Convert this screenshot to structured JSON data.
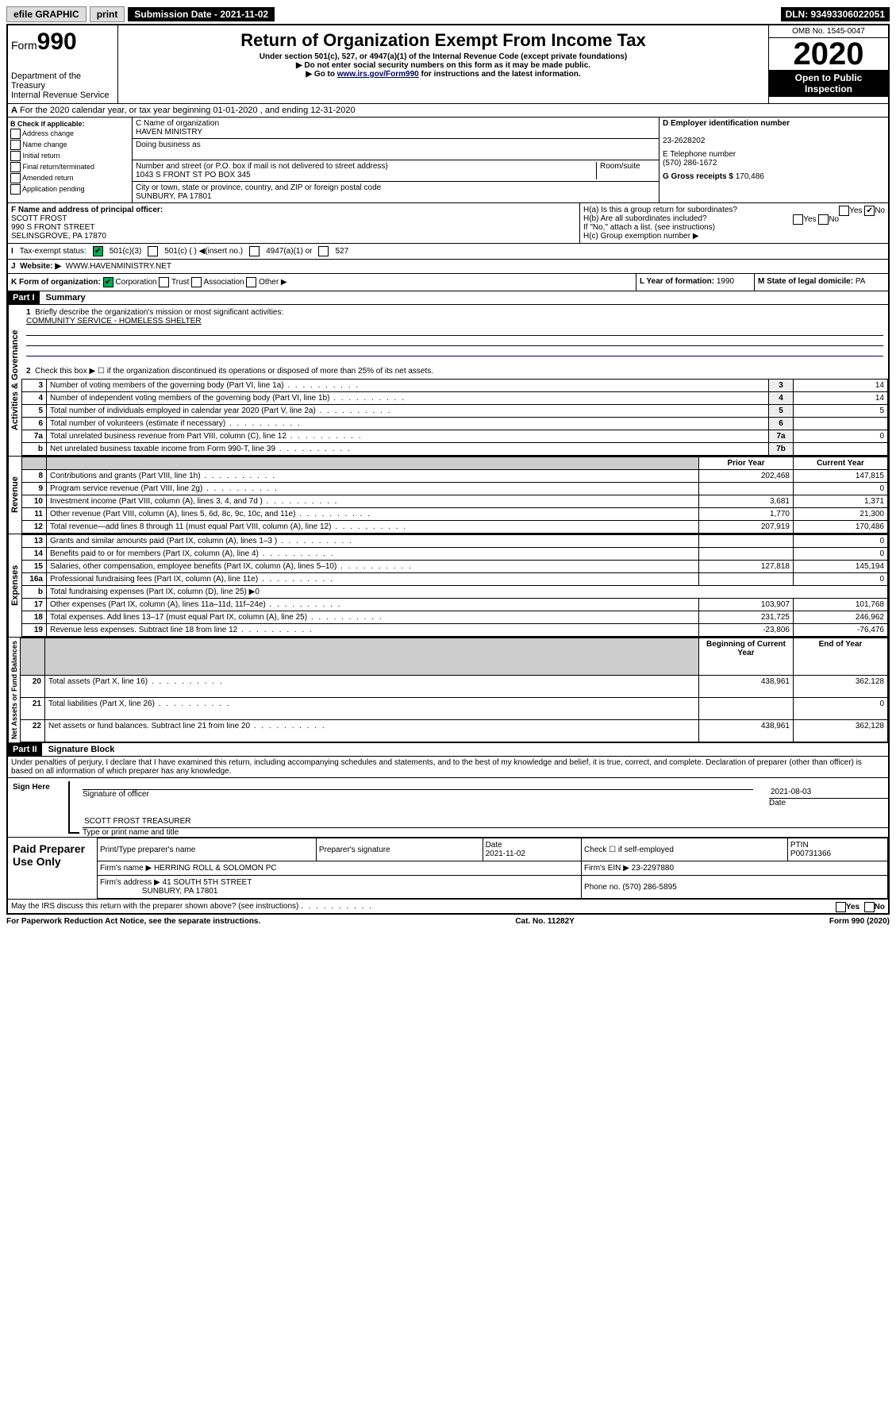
{
  "topbar": {
    "efile": "efile GRAPHIC",
    "print": "print",
    "subdate_lbl": "Submission Date - 2021-11-02",
    "dln": "DLN: 93493306022051"
  },
  "header": {
    "form": "990",
    "formword": "Form",
    "title": "Return of Organization Exempt From Income Tax",
    "subtitle": "Under section 501(c), 527, or 4947(a)(1) of the Internal Revenue Code (except private foundations)",
    "note1": "▶ Do not enter social security numbers on this form as it may be made public.",
    "note2_pre": "▶ Go to ",
    "note2_link": "www.irs.gov/Form990",
    "note2_post": " for instructions and the latest information.",
    "dept": "Department of the Treasury\nInternal Revenue Service",
    "omb": "OMB No. 1545-0047",
    "year": "2020",
    "open": "Open to Public Inspection"
  },
  "A": {
    "text": "For the 2020 calendar year, or tax year beginning 01-01-2020   , and ending 12-31-2020"
  },
  "B": {
    "hdr": "B Check if applicable:",
    "opts": [
      "Address change",
      "Name change",
      "Initial return",
      "Final return/terminated",
      "Amended return",
      "Application pending"
    ]
  },
  "C": {
    "name_lbl": "C Name of organization",
    "name": "HAVEN MINISTRY",
    "dba_lbl": "Doing business as",
    "dba": "",
    "addr_lbl": "Number and street (or P.O. box if mail is not delivered to street address)",
    "room_lbl": "Room/suite",
    "addr": "1043 S FRONT ST PO BOX 345",
    "city_lbl": "City or town, state or province, country, and ZIP or foreign postal code",
    "city": "SUNBURY, PA  17801"
  },
  "D": {
    "lbl": "D Employer identification number",
    "val": "23-2628202"
  },
  "E": {
    "lbl": "E Telephone number",
    "val": "(570) 286-1672"
  },
  "G": {
    "lbl": "G Gross receipts $",
    "val": "170,486"
  },
  "F": {
    "lbl": "F  Name and address of principal officer:",
    "name": "SCOTT FROST",
    "l1": "990 S FRONT STREET",
    "l2": "SELINSGROVE, PA  17870"
  },
  "H": {
    "a": "H(a)  Is this a group return for subordinates?",
    "b": "H(b)  Are all subordinates included?",
    "bnote": "If \"No,\" attach a list. (see instructions)",
    "c": "H(c)  Group exemption number ▶",
    "yes": "Yes",
    "no": "No"
  },
  "I": {
    "lbl": "Tax-exempt status:",
    "o1": "501(c)(3)",
    "o2": "501(c) (  ) ◀(insert no.)",
    "o3": "4947(a)(1) or",
    "o4": "527"
  },
  "J": {
    "lbl": "Website: ▶",
    "val": "WWW.HAVENMINISTRY.NET"
  },
  "K": {
    "lbl": "K Form of organization:",
    "o1": "Corporation",
    "o2": "Trust",
    "o3": "Association",
    "o4": "Other ▶"
  },
  "L": {
    "lbl": "L Year of formation:",
    "val": "1990"
  },
  "M": {
    "lbl": "M State of legal domicile:",
    "val": "PA"
  },
  "part1": {
    "hdr": "Part I",
    "title": "Summary",
    "q1": "Briefly describe the organization's mission or most significant activities:",
    "mission": "COMMUNITY SERVICE - HOMELESS SHELTER",
    "q2": "Check this box ▶ ☐  if the organization discontinued its operations or disposed of more than 25% of its net assets.",
    "rows_gov": [
      {
        "n": "3",
        "t": "Number of voting members of the governing body (Part VI, line 1a)",
        "rn": "3",
        "v": "14"
      },
      {
        "n": "4",
        "t": "Number of independent voting members of the governing body (Part VI, line 1b)",
        "rn": "4",
        "v": "14"
      },
      {
        "n": "5",
        "t": "Total number of individuals employed in calendar year 2020 (Part V, line 2a)",
        "rn": "5",
        "v": "5"
      },
      {
        "n": "6",
        "t": "Total number of volunteers (estimate if necessary)",
        "rn": "6",
        "v": ""
      },
      {
        "n": "7a",
        "t": "Total unrelated business revenue from Part VIII, column (C), line 12",
        "rn": "7a",
        "v": "0"
      },
      {
        "n": "b",
        "t": "Net unrelated business taxable income from Form 990-T, line 39",
        "rn": "7b",
        "v": ""
      }
    ],
    "colhdr1": "Prior Year",
    "colhdr2": "Current Year",
    "rows_rev": [
      {
        "n": "8",
        "t": "Contributions and grants (Part VIII, line 1h)",
        "p": "202,468",
        "c": "147,815"
      },
      {
        "n": "9",
        "t": "Program service revenue (Part VIII, line 2g)",
        "p": "",
        "c": "0"
      },
      {
        "n": "10",
        "t": "Investment income (Part VIII, column (A), lines 3, 4, and 7d )",
        "p": "3,681",
        "c": "1,371"
      },
      {
        "n": "11",
        "t": "Other revenue (Part VIII, column (A), lines 5, 6d, 8c, 9c, 10c, and 11e)",
        "p": "1,770",
        "c": "21,300"
      },
      {
        "n": "12",
        "t": "Total revenue—add lines 8 through 11 (must equal Part VIII, column (A), line 12)",
        "p": "207,919",
        "c": "170,486"
      }
    ],
    "rows_exp": [
      {
        "n": "13",
        "t": "Grants and similar amounts paid (Part IX, column (A), lines 1–3 )",
        "p": "",
        "c": "0"
      },
      {
        "n": "14",
        "t": "Benefits paid to or for members (Part IX, column (A), line 4)",
        "p": "",
        "c": "0"
      },
      {
        "n": "15",
        "t": "Salaries, other compensation, employee benefits (Part IX, column (A), lines 5–10)",
        "p": "127,818",
        "c": "145,194"
      },
      {
        "n": "16a",
        "t": "Professional fundraising fees (Part IX, column (A), line 11e)",
        "p": "",
        "c": "0"
      },
      {
        "n": "b",
        "t": "Total fundraising expenses (Part IX, column (D), line 25) ▶0",
        "p": null,
        "c": null
      },
      {
        "n": "17",
        "t": "Other expenses (Part IX, column (A), lines 11a–11d, 11f–24e)",
        "p": "103,907",
        "c": "101,768"
      },
      {
        "n": "18",
        "t": "Total expenses. Add lines 13–17 (must equal Part IX, column (A), line 25)",
        "p": "231,725",
        "c": "246,962"
      },
      {
        "n": "19",
        "t": "Revenue less expenses. Subtract line 18 from line 12",
        "p": "-23,806",
        "c": "-76,476"
      }
    ],
    "colhdr3": "Beginning of Current Year",
    "colhdr4": "End of Year",
    "rows_net": [
      {
        "n": "20",
        "t": "Total assets (Part X, line 16)",
        "p": "438,961",
        "c": "362,128"
      },
      {
        "n": "21",
        "t": "Total liabilities (Part X, line 26)",
        "p": "",
        "c": "0"
      },
      {
        "n": "22",
        "t": "Net assets or fund balances. Subtract line 21 from line 20",
        "p": "438,961",
        "c": "362,128"
      }
    ],
    "side1": "Activities & Governance",
    "side2": "Revenue",
    "side3": "Expenses",
    "side4": "Net Assets or Fund Balances"
  },
  "part2": {
    "hdr": "Part II",
    "title": "Signature Block",
    "decl": "Under penalties of perjury, I declare that I have examined this return, including accompanying schedules and statements, and to the best of my knowledge and belief, it is true, correct, and complete. Declaration of preparer (other than officer) is based on all information of which preparer has any knowledge.",
    "sign": "Sign Here",
    "sigoff": "Signature of officer",
    "date_lbl": "Date",
    "date": "2021-08-03",
    "name": "SCOTT FROST TREASURER",
    "name_lbl": "Type or print name and title",
    "paid": "Paid Preparer Use Only",
    "pp_name_lbl": "Print/Type preparer's name",
    "pp_sig_lbl": "Preparer's signature",
    "pp_date_lbl": "Date",
    "pp_date": "2021-11-02",
    "pp_check": "Check ☐ if self-employed",
    "ptin_lbl": "PTIN",
    "ptin": "P00731366",
    "firm_lbl": "Firm's name    ▶",
    "firm": "HERRING ROLL & SOLOMON PC",
    "ein_lbl": "Firm's EIN ▶",
    "ein": "23-2297880",
    "faddr_lbl": "Firm's address ▶",
    "faddr1": "41 SOUTH 5TH STREET",
    "faddr2": "SUNBURY, PA  17801",
    "phone_lbl": "Phone no.",
    "phone": "(570) 286-5895",
    "discuss": "May the IRS discuss this return with the preparer shown above? (see instructions)"
  },
  "footer": {
    "pra": "For Paperwork Reduction Act Notice, see the separate instructions.",
    "cat": "Cat. No. 11282Y",
    "form": "Form 990 (2020)"
  }
}
